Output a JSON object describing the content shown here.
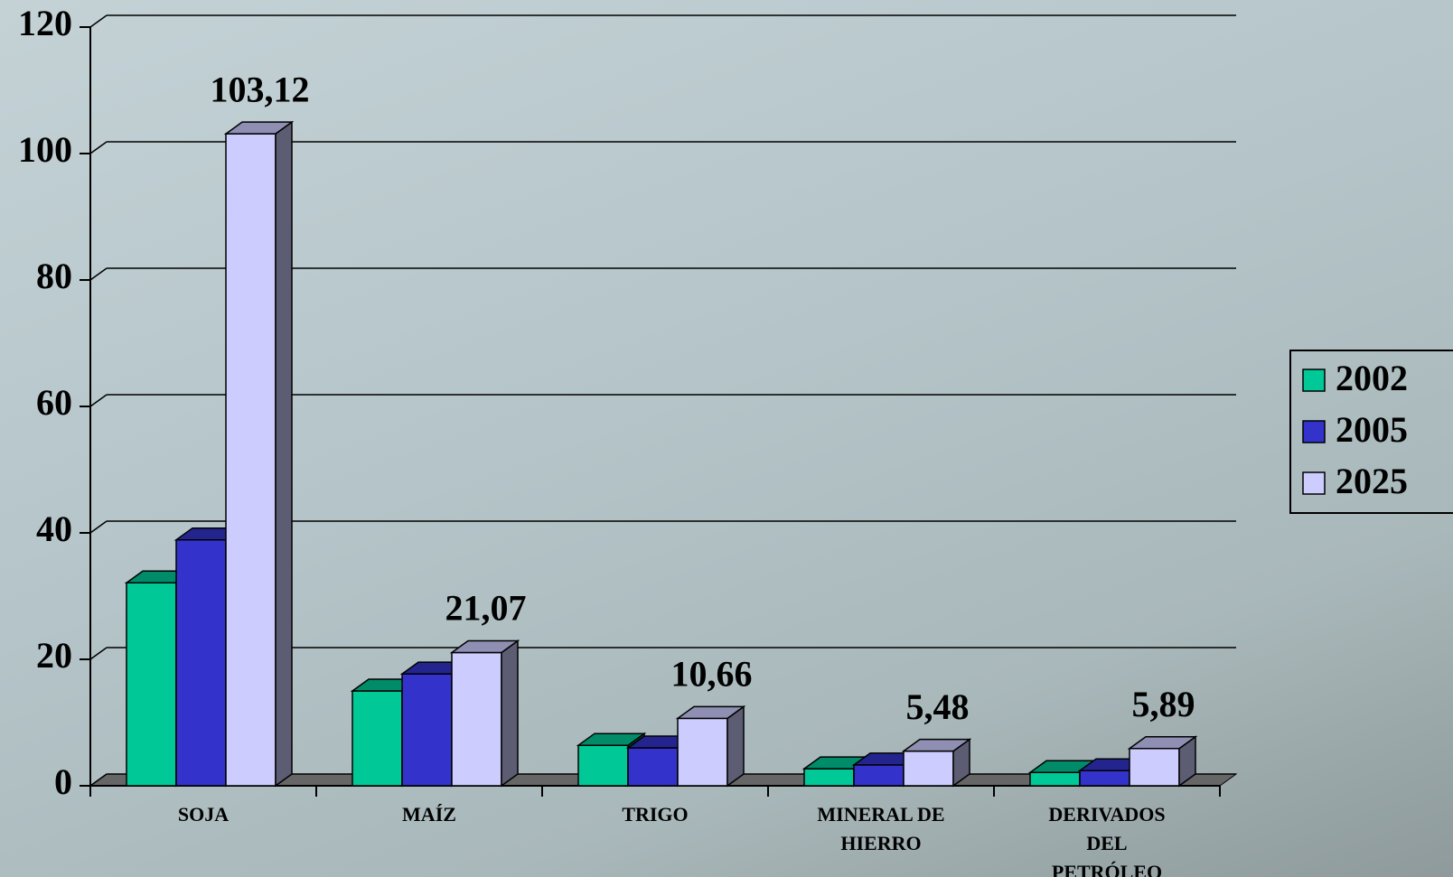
{
  "chart_data": {
    "type": "bar3d",
    "categories": [
      "SOJA",
      "MAÍZ",
      "TRIGO",
      "MINERAL DE HIERRO",
      "DERIVADOS DEL PETRÓLEO"
    ],
    "series": [
      {
        "name": "2002",
        "color": "#00c896",
        "values": [
          32.1,
          15,
          6.4,
          2.7,
          2.1
        ]
      },
      {
        "name": "2005",
        "color": "#3333cc",
        "values": [
          38.9,
          17.7,
          6,
          3.3,
          2.4
        ]
      },
      {
        "name": "2025",
        "color": "#ccccff",
        "values": [
          103.12,
          21.07,
          10.66,
          5.48,
          5.89
        ],
        "value_labels": [
          "103,12",
          "21,07",
          "10,66",
          "5,48",
          "5,89"
        ]
      }
    ],
    "ylim": [
      0,
      120
    ],
    "yticks": [
      0,
      20,
      40,
      60,
      80,
      100,
      120
    ],
    "grid": true,
    "legend": "right"
  }
}
